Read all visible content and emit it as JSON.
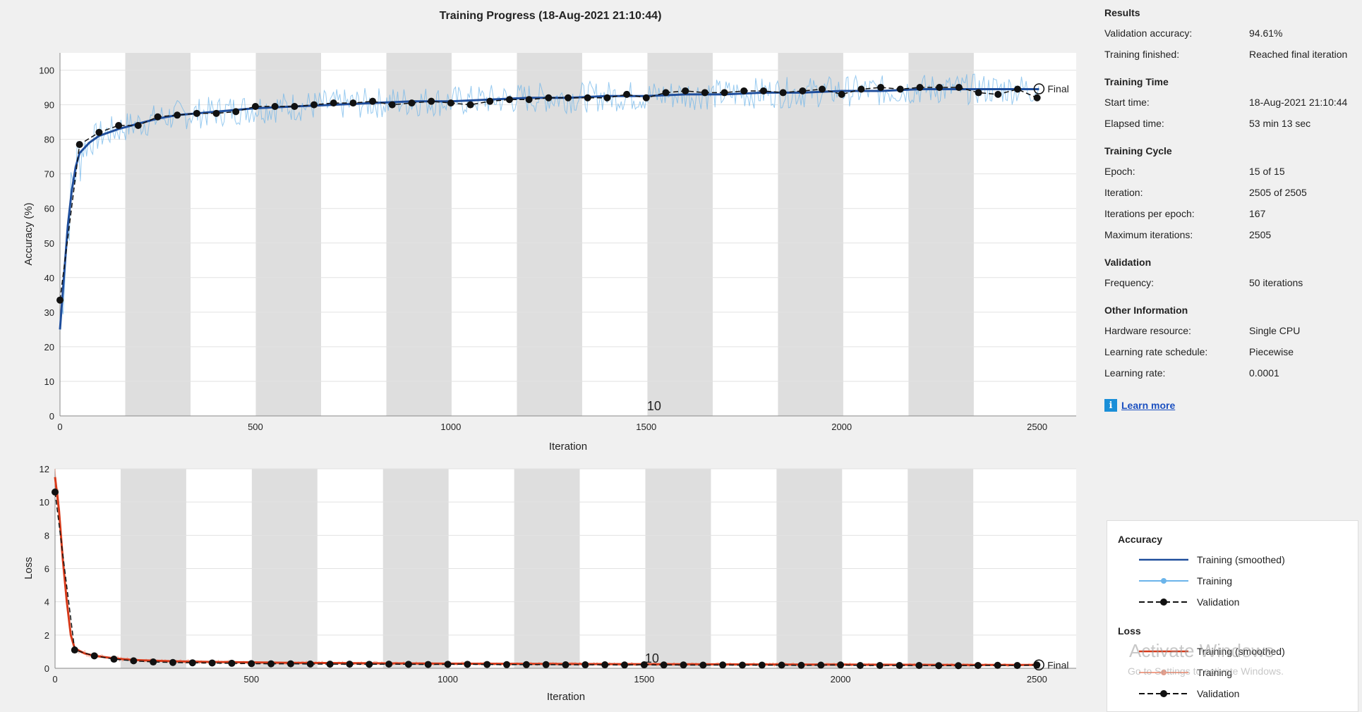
{
  "title": "Training Progress (18-Aug-2021 21:10:44)",
  "colors": {
    "acc_smoothed": "#1f4e9c",
    "acc_raw": "#6bb4ea",
    "loss_smoothed": "#d73a1a",
    "loss_raw": "#f2a08a",
    "validation": "#111111",
    "epoch_shade": "#dedede"
  },
  "chart_data": [
    {
      "type": "line",
      "name": "accuracy-plot",
      "xlabel": "Iteration",
      "ylabel": "Accuracy (%)",
      "xlim": [
        0,
        2600
      ],
      "ylim": [
        0,
        105
      ],
      "xticks": [
        0,
        500,
        1000,
        1500,
        2000,
        2500
      ],
      "yticks": [
        0,
        10,
        20,
        30,
        40,
        50,
        60,
        70,
        80,
        90,
        100
      ],
      "epoch_label": "10",
      "final_label": "Final",
      "epoch_boundaries": [
        0,
        167,
        334,
        501,
        668,
        835,
        1002,
        1169,
        1336,
        1503,
        1670,
        1837,
        2004,
        2171,
        2338,
        2505
      ],
      "series": [
        {
          "name": "Training (smoothed)",
          "x": [
            0,
            10,
            20,
            30,
            40,
            50,
            75,
            100,
            150,
            200,
            250,
            300,
            400,
            500,
            600,
            700,
            800,
            900,
            1000,
            1100,
            1200,
            1300,
            1400,
            1500,
            1600,
            1700,
            1800,
            1900,
            2000,
            2100,
            2200,
            2300,
            2400,
            2505
          ],
          "y": [
            25,
            40,
            55,
            65,
            72,
            76,
            79,
            81,
            83,
            84.5,
            86,
            87,
            88,
            89,
            89.5,
            90,
            90.5,
            91,
            91,
            91.5,
            92,
            92,
            92.5,
            92.5,
            93,
            93,
            93.5,
            93.5,
            94,
            94,
            94.5,
            94.5,
            94.5,
            94.5
          ]
        },
        {
          "name": "Validation",
          "x": [
            0,
            50,
            100,
            150,
            200,
            250,
            300,
            350,
            400,
            450,
            500,
            550,
            600,
            650,
            700,
            750,
            800,
            850,
            900,
            950,
            1000,
            1050,
            1100,
            1150,
            1200,
            1250,
            1300,
            1350,
            1400,
            1450,
            1500,
            1550,
            1600,
            1650,
            1700,
            1750,
            1800,
            1850,
            1900,
            1950,
            2000,
            2050,
            2100,
            2150,
            2200,
            2250,
            2300,
            2350,
            2400,
            2450,
            2500
          ],
          "y": [
            33.5,
            78.5,
            82,
            84,
            84,
            86.5,
            87,
            87.5,
            87.5,
            88,
            89.5,
            89.5,
            89.5,
            90,
            90.5,
            90.5,
            91,
            90,
            90.5,
            91,
            90.5,
            90,
            91,
            91.5,
            91.5,
            92,
            92,
            92,
            92,
            93,
            92,
            93.5,
            94,
            93.5,
            93.5,
            94,
            94,
            93.5,
            94,
            94.5,
            93,
            94.5,
            95,
            94.5,
            95,
            95,
            95,
            93.5,
            93,
            94.5,
            92
          ]
        }
      ],
      "final_value": 94.61
    },
    {
      "type": "line",
      "name": "loss-plot",
      "xlabel": "Iteration",
      "ylabel": "Loss",
      "xlim": [
        0,
        2600
      ],
      "ylim": [
        0,
        12
      ],
      "xticks": [
        0,
        500,
        1000,
        1500,
        2000,
        2500
      ],
      "yticks": [
        0,
        2,
        4,
        6,
        8,
        10,
        12
      ],
      "epoch_label": "10",
      "final_label": "Final",
      "series": [
        {
          "name": "Training (smoothed)",
          "x": [
            0,
            10,
            20,
            30,
            40,
            50,
            75,
            100,
            150,
            200,
            300,
            400,
            600,
            800,
            1000,
            1300,
            1600,
            2000,
            2300,
            2505
          ],
          "y": [
            11.5,
            9.5,
            6.5,
            4,
            2,
            1.2,
            0.9,
            0.75,
            0.6,
            0.5,
            0.42,
            0.38,
            0.33,
            0.3,
            0.28,
            0.26,
            0.24,
            0.22,
            0.2,
            0.2
          ]
        },
        {
          "name": "Validation",
          "x": [
            0,
            50,
            100,
            150,
            200,
            250,
            300,
            350,
            400,
            450,
            500,
            550,
            600,
            650,
            700,
            750,
            800,
            850,
            900,
            950,
            1000,
            1050,
            1100,
            1150,
            1200,
            1250,
            1300,
            1350,
            1400,
            1450,
            1500,
            1550,
            1600,
            1650,
            1700,
            1750,
            1800,
            1850,
            1900,
            1950,
            2000,
            2050,
            2100,
            2150,
            2200,
            2250,
            2300,
            2350,
            2400,
            2450,
            2500
          ],
          "y": [
            10.6,
            1.1,
            0.75,
            0.55,
            0.45,
            0.38,
            0.35,
            0.33,
            0.32,
            0.3,
            0.28,
            0.27,
            0.27,
            0.26,
            0.25,
            0.25,
            0.24,
            0.25,
            0.24,
            0.23,
            0.24,
            0.24,
            0.23,
            0.22,
            0.22,
            0.22,
            0.21,
            0.21,
            0.21,
            0.2,
            0.21,
            0.2,
            0.2,
            0.19,
            0.2,
            0.19,
            0.19,
            0.19,
            0.18,
            0.19,
            0.2,
            0.17,
            0.17,
            0.17,
            0.17,
            0.16,
            0.16,
            0.17,
            0.18,
            0.17,
            0.2
          ]
        }
      ]
    }
  ],
  "info": {
    "results": {
      "heading": "Results",
      "rows": [
        {
          "k": "Validation accuracy:",
          "v": "94.61%"
        },
        {
          "k": "Training finished:",
          "v": "Reached final iteration"
        }
      ]
    },
    "time": {
      "heading": "Training Time",
      "rows": [
        {
          "k": "Start time:",
          "v": "18-Aug-2021 21:10:44"
        },
        {
          "k": "Elapsed time:",
          "v": "53 min 13 sec"
        }
      ]
    },
    "cycle": {
      "heading": "Training Cycle",
      "rows": [
        {
          "k": "Epoch:",
          "v": "15 of 15"
        },
        {
          "k": "Iteration:",
          "v": "2505 of 2505"
        },
        {
          "k": "Iterations per epoch:",
          "v": "167"
        },
        {
          "k": "Maximum iterations:",
          "v": "2505"
        }
      ]
    },
    "validation": {
      "heading": "Validation",
      "rows": [
        {
          "k": "Frequency:",
          "v": "50 iterations"
        }
      ]
    },
    "other": {
      "heading": "Other Information",
      "rows": [
        {
          "k": "Hardware resource:",
          "v": "Single CPU"
        },
        {
          "k": "Learning rate schedule:",
          "v": "Piecewise"
        },
        {
          "k": "Learning rate:",
          "v": "0.0001"
        }
      ]
    },
    "learn_more": "Learn more",
    "learn_icon": "info-icon"
  },
  "legend": {
    "accuracy_heading": "Accuracy",
    "accuracy_items": [
      "Training (smoothed)",
      "Training",
      "Validation"
    ],
    "loss_heading": "Loss",
    "loss_items": [
      "Training (smoothed)",
      "Training",
      "Validation"
    ]
  },
  "watermark": {
    "line1": "Activate Windows",
    "line2": "Go to Settings to activate Windows."
  }
}
